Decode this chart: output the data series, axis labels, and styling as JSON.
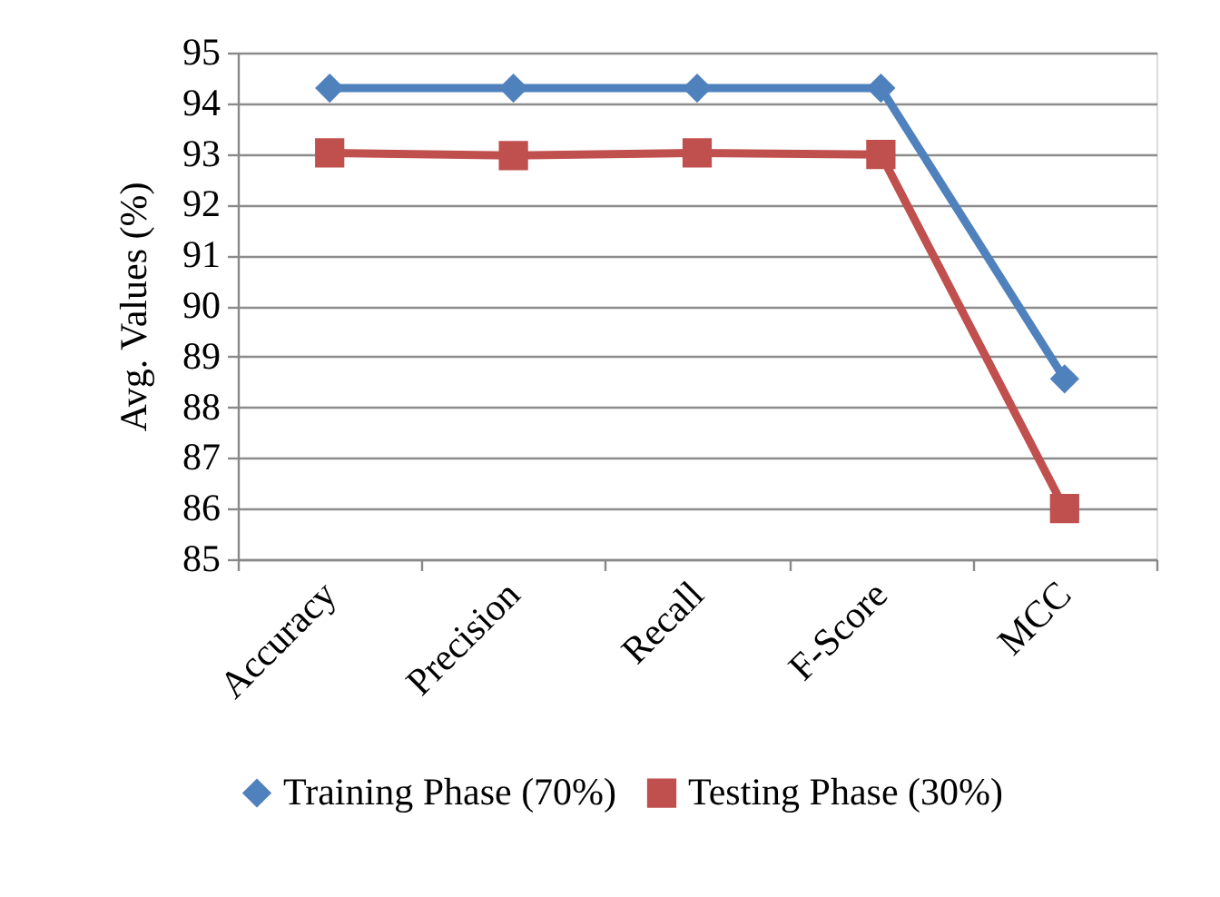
{
  "chart_data": {
    "type": "line",
    "ylabel": "Avg. Values (%)",
    "categories": [
      "Accuracy",
      "Precision",
      "Recall",
      "F-Score",
      "MCC"
    ],
    "series": [
      {
        "name": "Training Phase (70%)",
        "color": "#4f81bd",
        "marker": "diamond",
        "values": [
          94.3,
          94.3,
          94.3,
          94.3,
          88.56
        ]
      },
      {
        "name": "Testing Phase (30%)",
        "color": "#c0504d",
        "marker": "square",
        "values": [
          93.02,
          92.97,
          93.02,
          92.99,
          86.0
        ]
      }
    ],
    "ylim": [
      85,
      95
    ],
    "yticks": [
      85,
      86,
      87,
      88,
      89,
      90,
      91,
      92,
      93,
      94,
      95
    ],
    "grid": "y",
    "legend": "bottom",
    "line_style": "solid"
  }
}
